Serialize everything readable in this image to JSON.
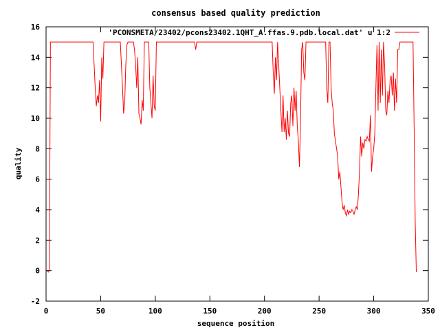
{
  "chart_data": {
    "type": "line",
    "title": "consensus based quality prediction",
    "xlabel": "sequence position",
    "ylabel": "quality",
    "xlim": [
      0,
      350
    ],
    "ylim": [
      -2,
      16
    ],
    "xticks": [
      0,
      50,
      100,
      150,
      200,
      250,
      300,
      350
    ],
    "yticks": [
      -2,
      0,
      2,
      4,
      6,
      8,
      10,
      12,
      14,
      16
    ],
    "grid": false,
    "legend_position": "top-right",
    "series": [
      {
        "name": "'PCONSMETA/23402/pcons23402.1QHT_A.ffas.9.pdb.local.dat' u 1:2",
        "color": "#ff0000",
        "points": [
          [
            1,
            0
          ],
          [
            2,
            -0.1
          ],
          [
            3,
            0
          ],
          [
            4,
            15
          ],
          [
            10,
            15
          ],
          [
            20,
            15
          ],
          [
            30,
            15
          ],
          [
            40,
            15
          ],
          [
            43,
            15
          ],
          [
            44,
            13.5
          ],
          [
            45,
            12
          ],
          [
            46,
            10.8
          ],
          [
            47,
            11.5
          ],
          [
            48,
            11
          ],
          [
            49,
            12.5
          ],
          [
            50,
            9.8
          ],
          [
            51,
            14
          ],
          [
            52,
            12.6
          ],
          [
            53,
            15
          ],
          [
            54,
            15
          ],
          [
            60,
            15
          ],
          [
            68,
            15
          ],
          [
            69,
            13.5
          ],
          [
            70,
            12
          ],
          [
            71,
            10.3
          ],
          [
            72,
            11
          ],
          [
            73,
            13.5
          ],
          [
            74,
            14.8
          ],
          [
            75,
            15
          ],
          [
            80,
            15
          ],
          [
            81,
            14.5
          ],
          [
            82,
            13.5
          ],
          [
            83,
            12
          ],
          [
            84,
            14
          ],
          [
            85,
            10.3
          ],
          [
            86,
            10
          ],
          [
            87,
            9.6
          ],
          [
            88,
            11.2
          ],
          [
            89,
            10.5
          ],
          [
            90,
            15
          ],
          [
            94,
            15
          ],
          [
            95,
            12
          ],
          [
            96,
            11
          ],
          [
            97,
            10
          ],
          [
            98,
            12.8
          ],
          [
            99,
            10.8
          ],
          [
            100,
            10.5
          ],
          [
            101,
            15
          ],
          [
            110,
            15
          ],
          [
            120,
            15
          ],
          [
            130,
            15
          ],
          [
            136,
            15
          ],
          [
            137,
            14.5
          ],
          [
            138,
            15
          ],
          [
            150,
            15
          ],
          [
            160,
            15
          ],
          [
            170,
            15
          ],
          [
            180,
            15
          ],
          [
            190,
            15
          ],
          [
            200,
            15
          ],
          [
            207,
            15
          ],
          [
            208,
            13
          ],
          [
            209,
            11.6
          ],
          [
            210,
            14
          ],
          [
            211,
            12.5
          ],
          [
            212,
            15
          ],
          [
            213,
            13.5
          ],
          [
            214,
            12
          ],
          [
            215,
            10.5
          ],
          [
            216,
            9.1
          ],
          [
            217,
            11.5
          ],
          [
            218,
            9.1
          ],
          [
            219,
            10
          ],
          [
            220,
            8.6
          ],
          [
            221,
            10.5
          ],
          [
            222,
            9
          ],
          [
            223,
            8.8
          ],
          [
            224,
            11
          ],
          [
            225,
            11.5
          ],
          [
            226,
            9.5
          ],
          [
            227,
            12
          ],
          [
            228,
            10.5
          ],
          [
            229,
            11.8
          ],
          [
            230,
            9.5
          ],
          [
            231,
            8.5
          ],
          [
            232,
            6.8
          ],
          [
            233,
            10
          ],
          [
            234,
            14.5
          ],
          [
            235,
            15
          ],
          [
            236,
            13
          ],
          [
            237,
            12.5
          ],
          [
            238,
            15
          ],
          [
            245,
            15
          ],
          [
            250,
            15
          ],
          [
            255,
            15
          ],
          [
            256,
            15
          ],
          [
            257,
            12
          ],
          [
            258,
            11
          ],
          [
            259,
            15
          ],
          [
            260,
            15
          ],
          [
            261,
            12
          ],
          [
            262,
            11
          ],
          [
            263,
            10.5
          ],
          [
            264,
            9
          ],
          [
            265,
            8.5
          ],
          [
            266,
            8
          ],
          [
            267,
            7.5
          ],
          [
            268,
            6
          ],
          [
            269,
            6.5
          ],
          [
            270,
            5.5
          ],
          [
            271,
            4.5
          ],
          [
            272,
            4
          ],
          [
            273,
            4.3
          ],
          [
            274,
            3.8
          ],
          [
            275,
            3.6
          ],
          [
            276,
            4
          ],
          [
            277,
            3.7
          ],
          [
            278,
            3.9
          ],
          [
            279,
            3.8
          ],
          [
            280,
            4
          ],
          [
            281,
            3.9
          ],
          [
            282,
            3.7
          ],
          [
            283,
            4
          ],
          [
            284,
            4.2
          ],
          [
            285,
            4
          ],
          [
            286,
            5
          ],
          [
            287,
            6.5
          ],
          [
            288,
            8.8
          ],
          [
            289,
            7.5
          ],
          [
            290,
            8.4
          ],
          [
            291,
            8
          ],
          [
            292,
            8.6
          ],
          [
            293,
            8.5
          ],
          [
            294,
            8.8
          ],
          [
            295,
            8.6
          ],
          [
            296,
            8.5
          ],
          [
            297,
            10.2
          ],
          [
            298,
            6.5
          ],
          [
            299,
            7.5
          ],
          [
            300,
            8
          ],
          [
            301,
            9
          ],
          [
            302,
            12
          ],
          [
            303,
            14.8
          ],
          [
            304,
            10.5
          ],
          [
            305,
            15
          ],
          [
            306,
            11
          ],
          [
            307,
            14.5
          ],
          [
            308,
            11.5
          ],
          [
            309,
            15
          ],
          [
            310,
            13.5
          ],
          [
            311,
            10.5
          ],
          [
            312,
            10.2
          ],
          [
            313,
            11.8
          ],
          [
            314,
            11
          ],
          [
            315,
            12.5
          ],
          [
            316,
            12.8
          ],
          [
            317,
            11.5
          ],
          [
            318,
            13
          ],
          [
            319,
            10.5
          ],
          [
            320,
            12.6
          ],
          [
            321,
            11
          ],
          [
            322,
            14.5
          ],
          [
            323,
            14.5
          ],
          [
            324,
            15
          ],
          [
            330,
            15
          ],
          [
            335,
            15
          ],
          [
            336,
            15
          ],
          [
            337,
            9.5
          ],
          [
            338,
            3.2
          ],
          [
            339,
            -0.1
          ]
        ]
      }
    ]
  }
}
